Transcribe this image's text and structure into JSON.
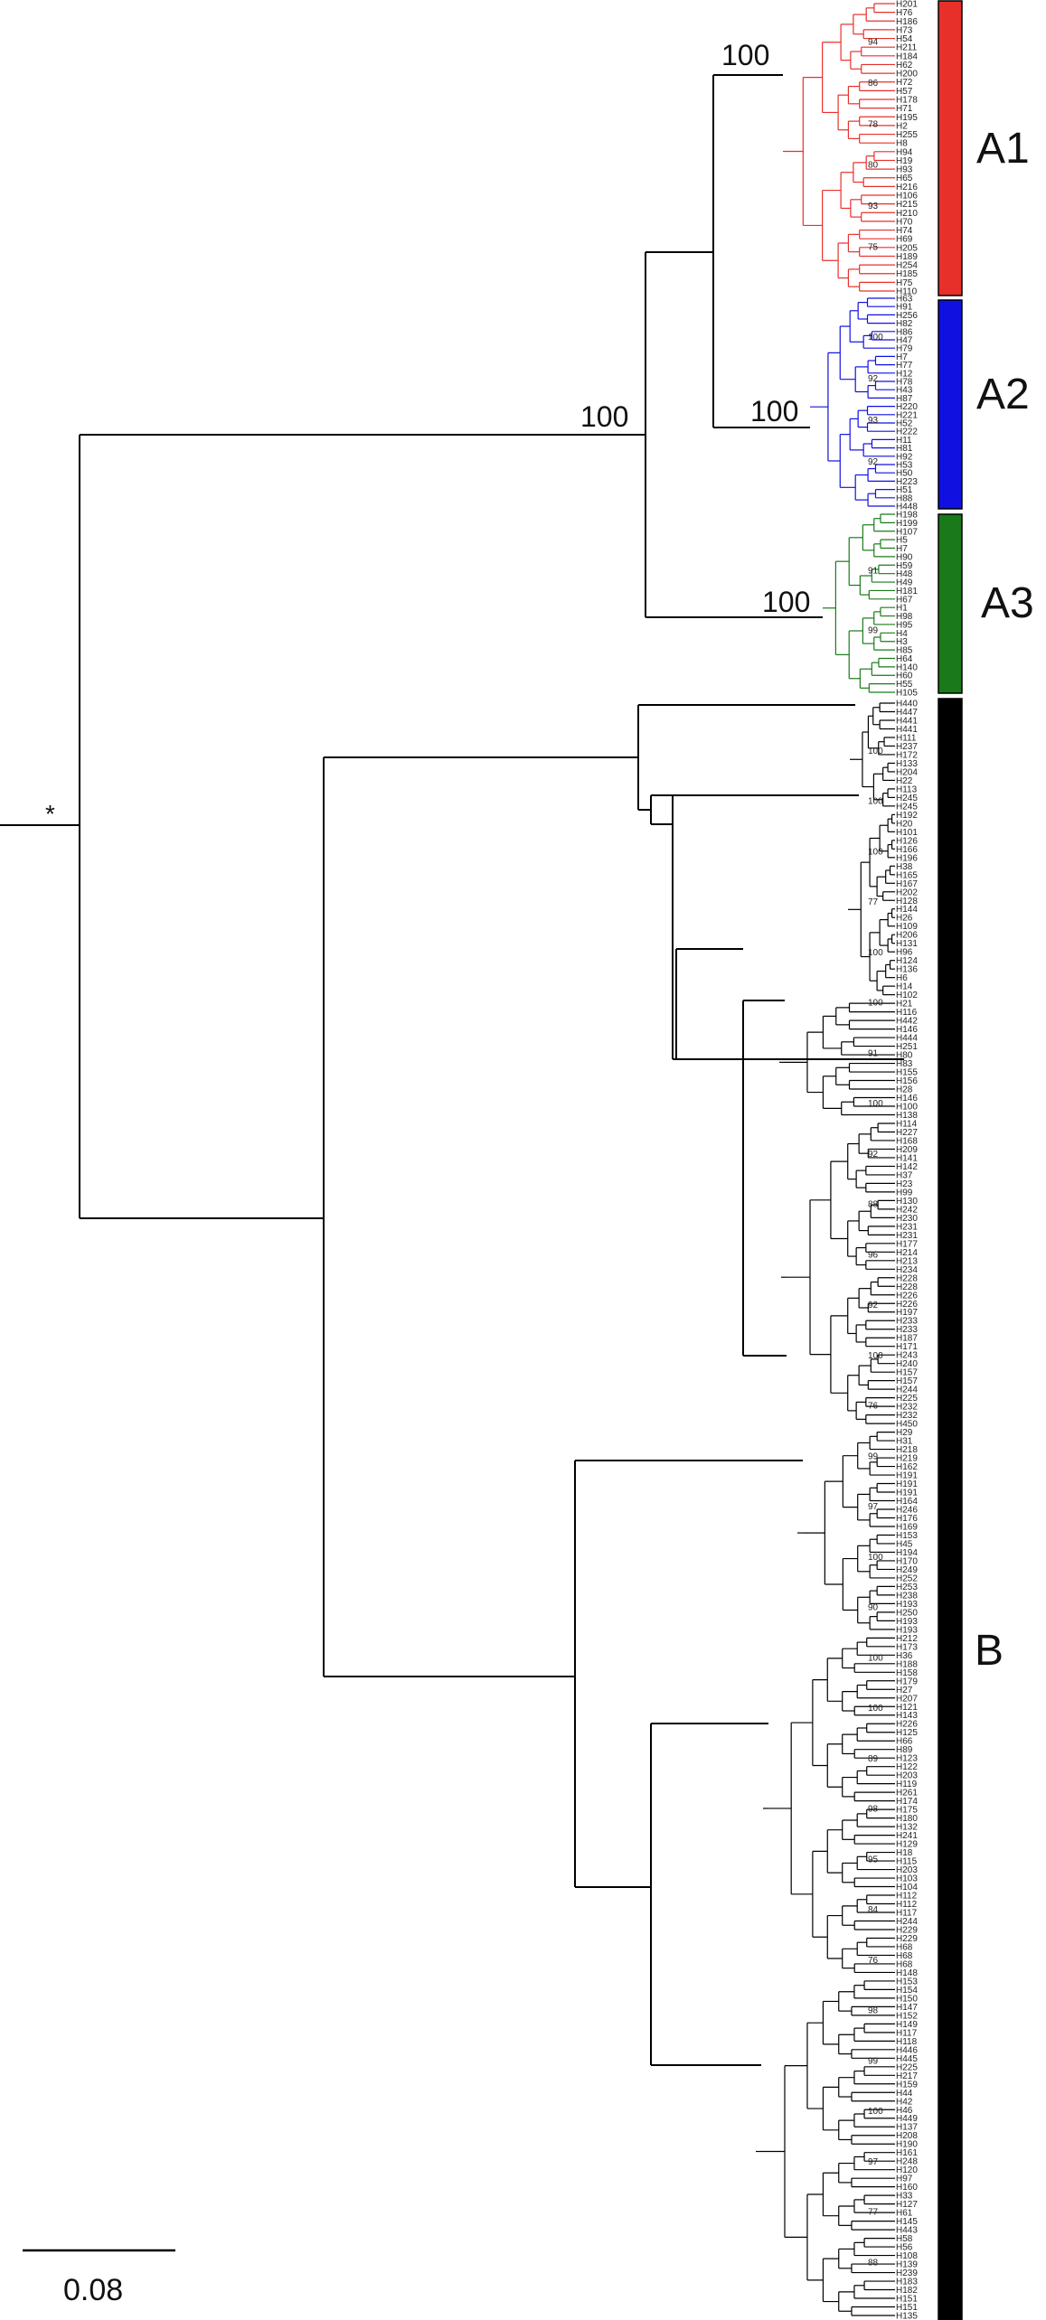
{
  "colors": {
    "A1": "#e8302b",
    "A2": "#1010e0",
    "A3": "#1a7a1a",
    "B": "#000000",
    "backbone": "#000000"
  },
  "root_marker": "*",
  "major_support": {
    "a1": "100",
    "a2": "100",
    "a3": "100",
    "a": "100"
  },
  "clades": {
    "A1": {
      "label": "A1",
      "color": "#e8302b"
    },
    "A2": {
      "label": "A2",
      "color": "#1010e0"
    },
    "A3": {
      "label": "A3",
      "color": "#1a7a1a"
    },
    "B": {
      "label": "B",
      "color": "#000000"
    }
  },
  "scale_bar": {
    "label": "0.08"
  },
  "tips_A1": [
    "H201",
    "H76",
    "H186",
    "H73",
    "H54",
    "H211",
    "H184",
    "H62",
    "H200",
    "H72",
    "H57",
    "H178",
    "H71",
    "H195",
    "H2",
    "H255",
    "H8",
    "H94",
    "H19",
    "H93",
    "H65",
    "H216",
    "H106",
    "H215",
    "H210",
    "H70",
    "H74",
    "H69",
    "H205",
    "H189",
    "H254",
    "H185",
    "H75",
    "H110"
  ],
  "tips_A2": [
    "H63",
    "H91",
    "H256",
    "H82",
    "H86",
    "H47",
    "H79",
    "H7",
    "H77",
    "H12",
    "H78",
    "H43",
    "H87",
    "H220",
    "H221",
    "H52",
    "H222",
    "H11",
    "H81",
    "H92",
    "H53",
    "H50",
    "H223",
    "H51",
    "H88",
    "H448"
  ],
  "tips_A3": [
    "H198",
    "H199",
    "H107",
    "H5",
    "H7",
    "H90",
    "H59",
    "H48",
    "H49",
    "H181",
    "H67",
    "H1",
    "H98",
    "H95",
    "H4",
    "H3",
    "H85",
    "H64",
    "H140",
    "H60",
    "H55",
    "H105"
  ],
  "tips_B": [
    "H440",
    "H447",
    "H441",
    "H441",
    "H111",
    "H237",
    "H172",
    "H133",
    "H204",
    "H22",
    "H113",
    "H245",
    "H245",
    "H192",
    "H20",
    "H101",
    "H126",
    "H166",
    "H196",
    "H38",
    "H165",
    "H167",
    "H202",
    "H128",
    "H144",
    "H26",
    "H109",
    "H206",
    "H131",
    "H96",
    "H124",
    "H136",
    "H6",
    "H14",
    "H102",
    "H21",
    "H116",
    "H442",
    "H146",
    "H444",
    "H251",
    "H80",
    "H83",
    "H155",
    "H156",
    "H28",
    "H146",
    "H100",
    "H138",
    "H114",
    "H227",
    "H168",
    "H209",
    "H141",
    "H142",
    "H37",
    "H23",
    "H99",
    "H130",
    "H242",
    "H230",
    "H231",
    "H231",
    "H177",
    "H214",
    "H213",
    "H234",
    "H228",
    "H228",
    "H226",
    "H226",
    "H197",
    "H233",
    "H233",
    "H187",
    "H171",
    "H243",
    "H240",
    "H157",
    "H157",
    "H244",
    "H225",
    "H232",
    "H232",
    "H450",
    "H29",
    "H31",
    "H218",
    "H219",
    "H162",
    "H191",
    "H191",
    "H191",
    "H164",
    "H246",
    "H176",
    "H169",
    "H153",
    "H45",
    "H194",
    "H170",
    "H249",
    "H252",
    "H253",
    "H238",
    "H193",
    "H250",
    "H193",
    "H193",
    "H212",
    "H173",
    "H36",
    "H188",
    "H158",
    "H179",
    "H27",
    "H207",
    "H121",
    "H143",
    "H226",
    "H125",
    "H66",
    "H89",
    "H123",
    "H122",
    "H203",
    "H119",
    "H261",
    "H174",
    "H175",
    "H180",
    "H132",
    "H241",
    "H129",
    "H18",
    "H115",
    "H203",
    "H103",
    "H104",
    "H112",
    "H112",
    "H117",
    "H244",
    "H229",
    "H229",
    "H68",
    "H68",
    "H68",
    "H148",
    "H153",
    "H154",
    "H150",
    "H147",
    "H152",
    "H149",
    "H117",
    "H118",
    "H446",
    "H445",
    "H225",
    "H217",
    "H159",
    "H44",
    "H42",
    "H46",
    "H449",
    "H137",
    "H208",
    "H190",
    "H161",
    "H248",
    "H120",
    "H97",
    "H160",
    "H33",
    "H127",
    "H61",
    "H145",
    "H443",
    "H58",
    "H56",
    "H108",
    "H139",
    "H239",
    "H183",
    "H182",
    "H151",
    "H151",
    "H135"
  ],
  "node_supports": {
    "a1_n1": "94",
    "a1_n2": "86",
    "a1_n3": "78",
    "a1_n4": "80",
    "a1_n5": "93",
    "a1_n6": "75",
    "a2_n1": "100",
    "a2_n2": "92",
    "a2_n3": "93",
    "a2_n4": "92",
    "a3_n1": "91",
    "a3_n2": "99",
    "b_n1": "100",
    "b_n2": "100",
    "b_n3": "100",
    "b_n4": "77",
    "b_n5": "100",
    "b_n6": "100",
    "b_n7": "91",
    "b_n8": "100",
    "b_n9": "92",
    "b_n10": "88",
    "b_n11": "96",
    "b_n12": "92",
    "b_n13": "100",
    "b_n14": "76",
    "b_n15": "99",
    "b_n16": "97",
    "b_n17": "100",
    "b_n18": "90",
    "b_n19": "100",
    "b_n20": "100",
    "b_n21": "89",
    "b_n22": "98",
    "b_n23": "95",
    "b_n24": "84",
    "b_n25": "76",
    "b_n26": "98",
    "b_n27": "99",
    "b_n28": "100",
    "b_n29": "97",
    "b_n30": "77",
    "b_n31": "88"
  }
}
